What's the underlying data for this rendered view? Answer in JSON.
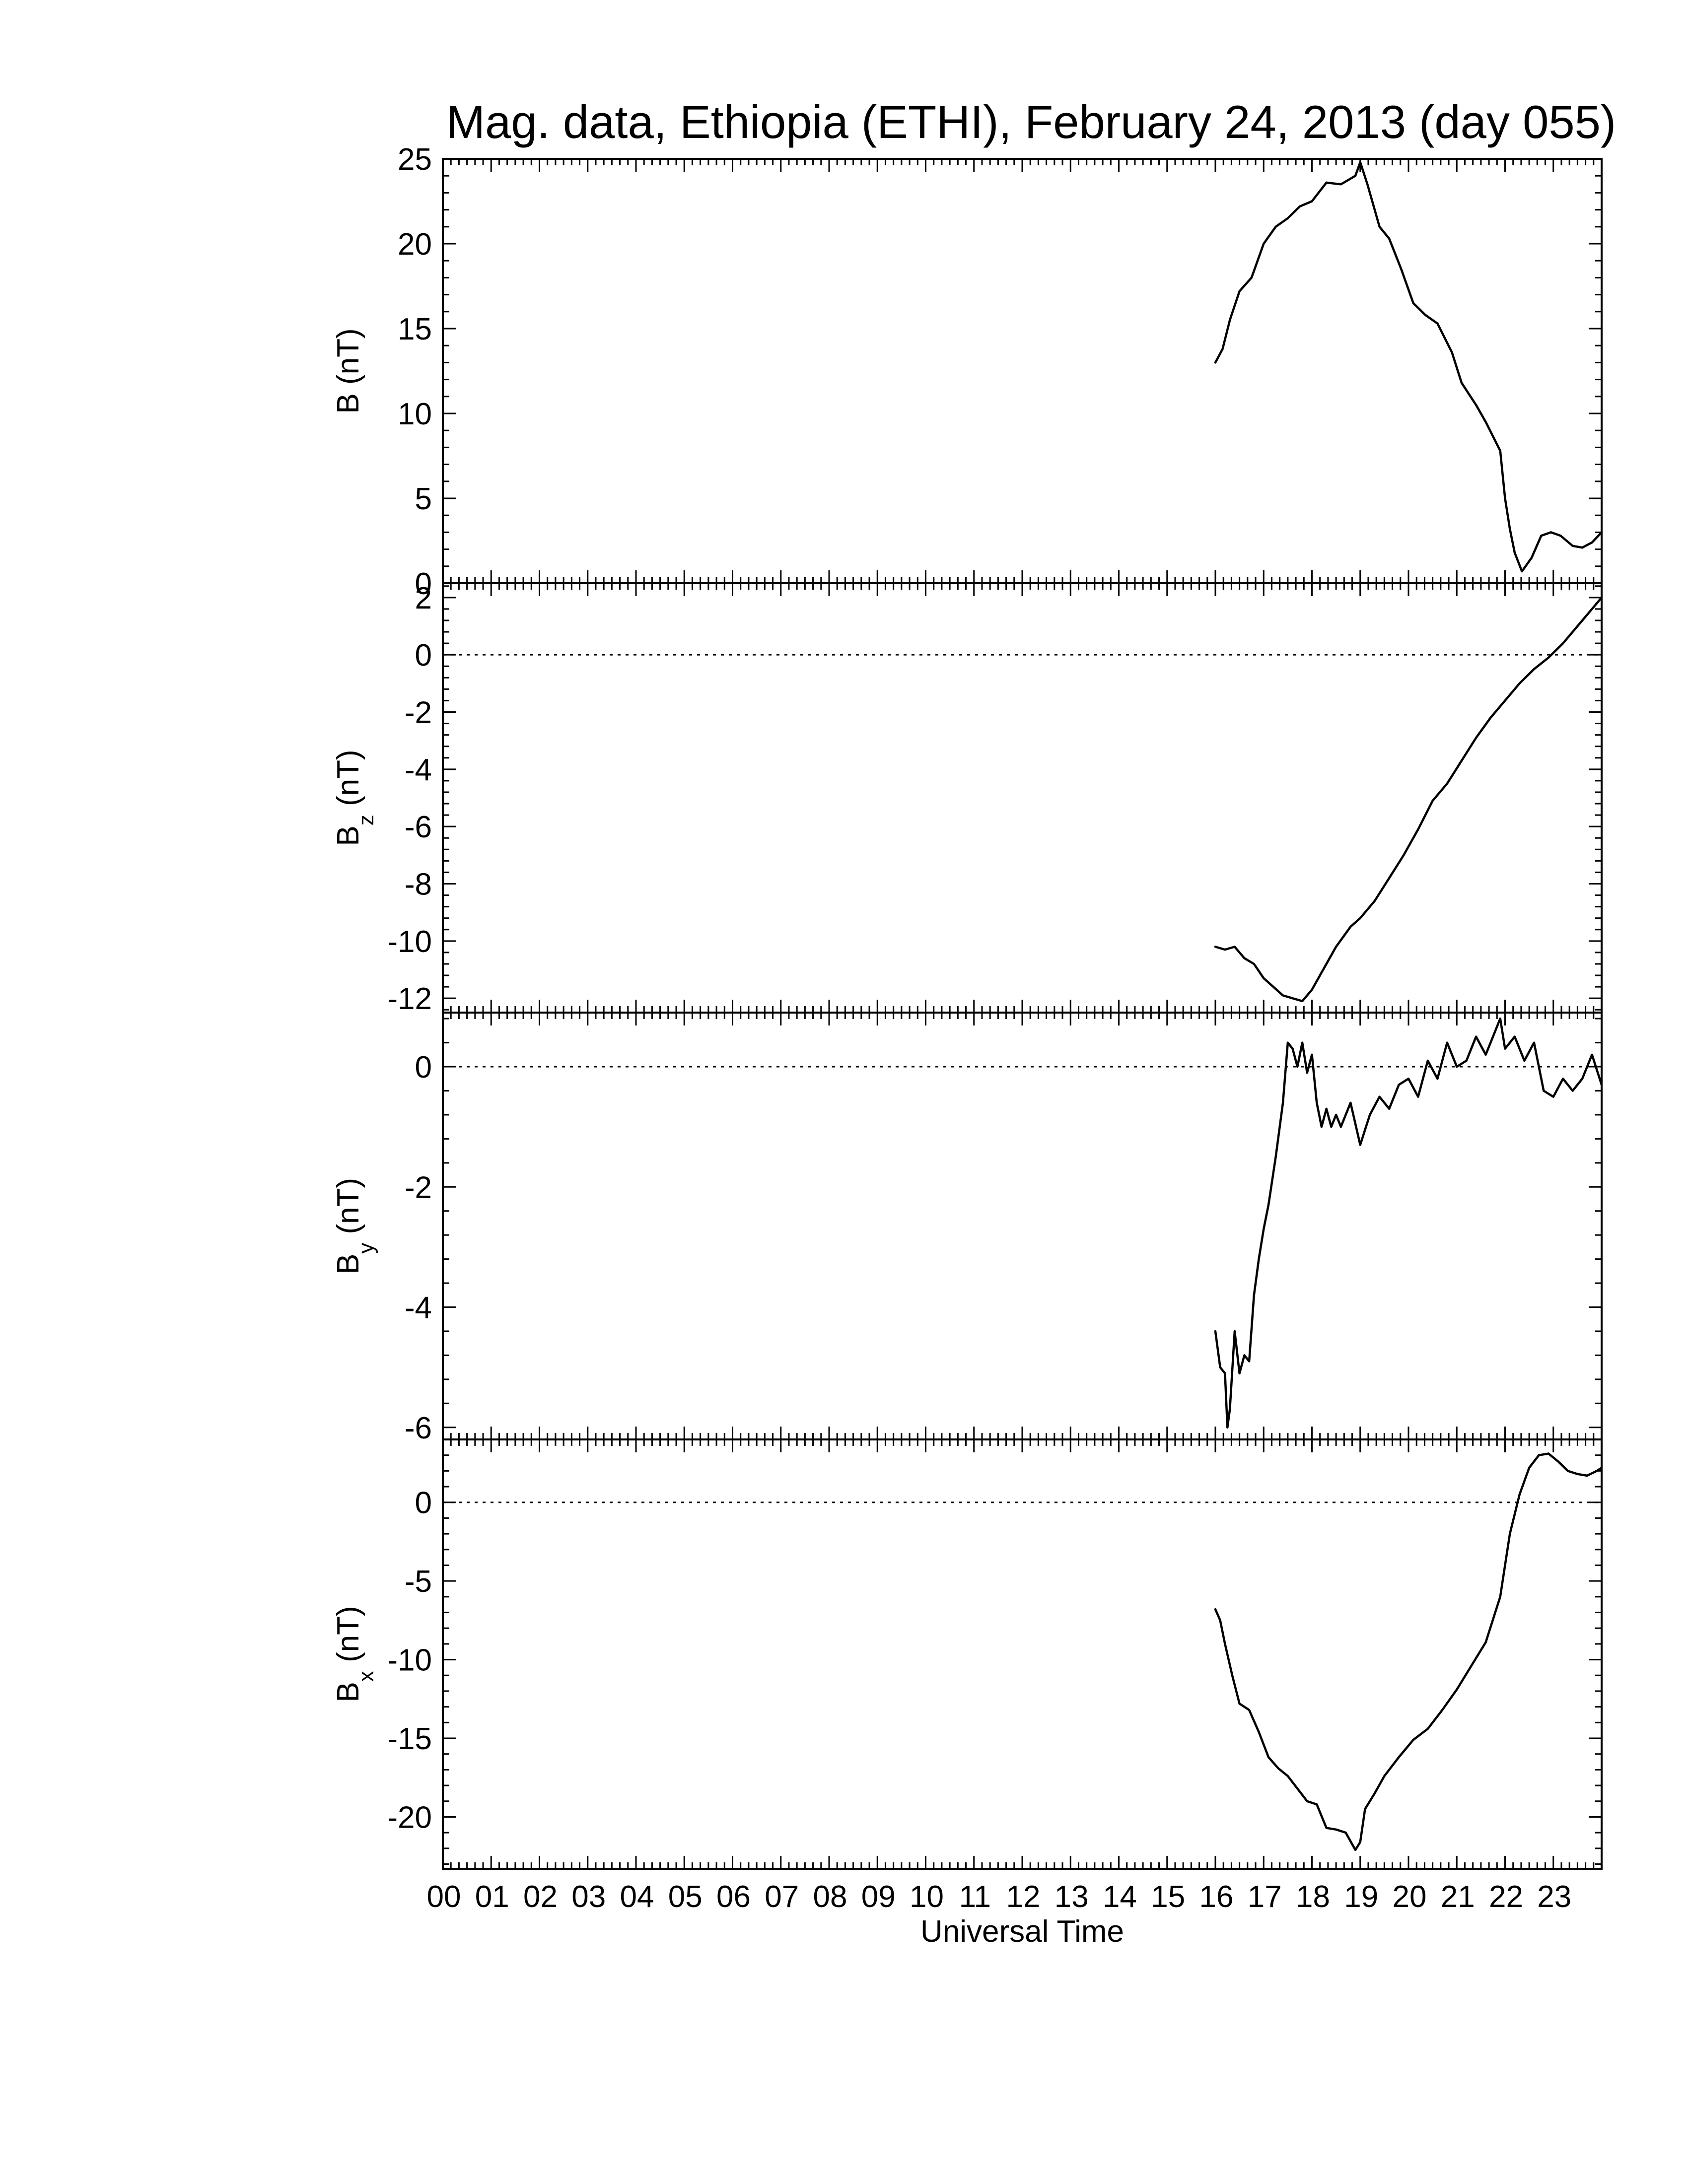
{
  "chart_data": {
    "type": "line",
    "title": "Mag. data, Ethiopia (ETHI), February 24, 2013 (day 055)",
    "xlabel": "Universal Time",
    "x_unit": "hour UT",
    "xlim": [
      0,
      24
    ],
    "x_tick_labels": [
      "00",
      "01",
      "02",
      "03",
      "04",
      "05",
      "06",
      "07",
      "08",
      "09",
      "10",
      "11",
      "12",
      "13",
      "14",
      "15",
      "16",
      "17",
      "18",
      "19",
      "20",
      "21",
      "22",
      "23"
    ],
    "panels": [
      {
        "id": "B",
        "ylabel_main": "B",
        "ylabel_sub": "",
        "ylabel_unit": "(nT)",
        "ylim": [
          0,
          25
        ],
        "y_ticks": [
          0,
          5,
          10,
          15,
          20,
          25
        ],
        "y_tick_labels": [
          "0",
          "5",
          "10",
          "15",
          "20",
          "25"
        ],
        "zero_line": false,
        "x": [
          16.0,
          16.15,
          16.3,
          16.5,
          16.75,
          17.0,
          17.25,
          17.5,
          17.75,
          18.0,
          18.3,
          18.6,
          18.9,
          19.0,
          19.15,
          19.4,
          19.6,
          19.85,
          20.1,
          20.35,
          20.6,
          20.9,
          21.1,
          21.4,
          21.6,
          21.9,
          22.0,
          22.1,
          22.2,
          22.35,
          22.55,
          22.75,
          22.95,
          23.15,
          23.4,
          23.6,
          23.8,
          24.0
        ],
        "y": [
          13.0,
          13.8,
          15.5,
          17.2,
          18.0,
          20.0,
          21.0,
          21.5,
          22.2,
          22.5,
          23.6,
          23.5,
          24.0,
          24.8,
          23.5,
          21.0,
          20.3,
          18.5,
          16.5,
          15.8,
          15.3,
          13.6,
          11.8,
          10.5,
          9.5,
          7.8,
          5.0,
          3.2,
          1.8,
          0.7,
          1.5,
          2.8,
          3.0,
          2.8,
          2.2,
          2.1,
          2.4,
          3.0
        ]
      },
      {
        "id": "Bz",
        "ylabel_main": "B",
        "ylabel_sub": "z",
        "ylabel_unit": "(nT)",
        "ylim": [
          -12.5,
          2.5
        ],
        "y_ticks": [
          -12,
          -10,
          -8,
          -6,
          -4,
          -2,
          0,
          2
        ],
        "y_tick_labels": [
          "-12",
          "-10",
          "-8",
          "-6",
          "-4",
          "-2",
          "0",
          "2"
        ],
        "zero_line": true,
        "x": [
          16.0,
          16.2,
          16.4,
          16.6,
          16.8,
          17.0,
          17.2,
          17.4,
          17.6,
          17.8,
          18.0,
          18.2,
          18.5,
          18.8,
          19.0,
          19.3,
          19.6,
          19.9,
          20.2,
          20.5,
          20.8,
          21.1,
          21.4,
          21.7,
          22.0,
          22.3,
          22.6,
          22.9,
          23.2,
          23.5,
          23.8,
          24.0
        ],
        "y": [
          -10.2,
          -10.3,
          -10.2,
          -10.6,
          -10.8,
          -11.3,
          -11.6,
          -11.9,
          -12.0,
          -12.1,
          -11.7,
          -11.1,
          -10.2,
          -9.5,
          -9.2,
          -8.6,
          -7.8,
          -7.0,
          -6.1,
          -5.1,
          -4.5,
          -3.7,
          -2.9,
          -2.2,
          -1.6,
          -1.0,
          -0.5,
          -0.1,
          0.4,
          1.0,
          1.6,
          2.0
        ]
      },
      {
        "id": "By",
        "ylabel_main": "B",
        "ylabel_sub": "y",
        "ylabel_unit": "(nT)",
        "ylim": [
          -6.2,
          0.9
        ],
        "y_ticks": [
          -6,
          -4,
          -2,
          0
        ],
        "y_tick_labels": [
          "-6",
          "-4",
          "-2",
          "0"
        ],
        "zero_line": true,
        "x": [
          16.0,
          16.1,
          16.2,
          16.25,
          16.3,
          16.4,
          16.5,
          16.6,
          16.7,
          16.8,
          16.9,
          17.0,
          17.1,
          17.25,
          17.4,
          17.5,
          17.6,
          17.7,
          17.8,
          17.9,
          18.0,
          18.1,
          18.2,
          18.3,
          18.4,
          18.5,
          18.6,
          18.8,
          19.0,
          19.2,
          19.4,
          19.6,
          19.8,
          20.0,
          20.2,
          20.4,
          20.6,
          20.8,
          21.0,
          21.2,
          21.4,
          21.6,
          21.8,
          21.9,
          22.0,
          22.2,
          22.4,
          22.6,
          22.8,
          23.0,
          23.2,
          23.4,
          23.6,
          23.8,
          24.0
        ],
        "y": [
          -4.4,
          -5.0,
          -5.1,
          -6.0,
          -5.7,
          -4.4,
          -5.1,
          -4.8,
          -4.9,
          -3.8,
          -3.2,
          -2.7,
          -2.3,
          -1.5,
          -0.6,
          0.4,
          0.3,
          0.0,
          0.4,
          -0.1,
          0.2,
          -0.6,
          -1.0,
          -0.7,
          -1.0,
          -0.8,
          -1.0,
          -0.6,
          -1.3,
          -0.8,
          -0.5,
          -0.7,
          -0.3,
          -0.2,
          -0.5,
          0.1,
          -0.2,
          0.4,
          0.0,
          0.1,
          0.5,
          0.2,
          0.6,
          0.8,
          0.3,
          0.5,
          0.1,
          0.4,
          -0.4,
          -0.5,
          -0.2,
          -0.4,
          -0.2,
          0.2,
          -0.3
        ]
      },
      {
        "id": "Bx",
        "ylabel_main": "B",
        "ylabel_sub": "x",
        "ylabel_unit": "(nT)",
        "ylim": [
          -23.3,
          4.0
        ],
        "y_ticks": [
          -20,
          -15,
          -10,
          -5,
          0
        ],
        "y_tick_labels": [
          "-20",
          "-15",
          "-10",
          "-5",
          "0"
        ],
        "zero_line": true,
        "x": [
          16.0,
          16.1,
          16.2,
          16.35,
          16.5,
          16.7,
          16.9,
          17.1,
          17.3,
          17.5,
          17.7,
          17.9,
          18.1,
          18.3,
          18.5,
          18.7,
          18.9,
          19.0,
          19.1,
          19.3,
          19.5,
          19.8,
          20.1,
          20.4,
          20.7,
          21.0,
          21.3,
          21.6,
          21.9,
          22.1,
          22.3,
          22.5,
          22.7,
          22.9,
          23.1,
          23.3,
          23.5,
          23.7,
          23.9,
          24.0
        ],
        "y": [
          -6.8,
          -7.5,
          -9.0,
          -11.0,
          -12.8,
          -13.2,
          -14.6,
          -16.2,
          -16.9,
          -17.4,
          -18.2,
          -19.0,
          -19.2,
          -20.7,
          -20.8,
          -21.0,
          -22.1,
          -21.6,
          -19.5,
          -18.5,
          -17.4,
          -16.2,
          -15.1,
          -14.4,
          -13.2,
          -11.9,
          -10.4,
          -8.9,
          -6.0,
          -2.0,
          0.5,
          2.2,
          3.0,
          3.1,
          2.6,
          2.0,
          1.8,
          1.7,
          2.0,
          2.2
        ]
      }
    ]
  }
}
